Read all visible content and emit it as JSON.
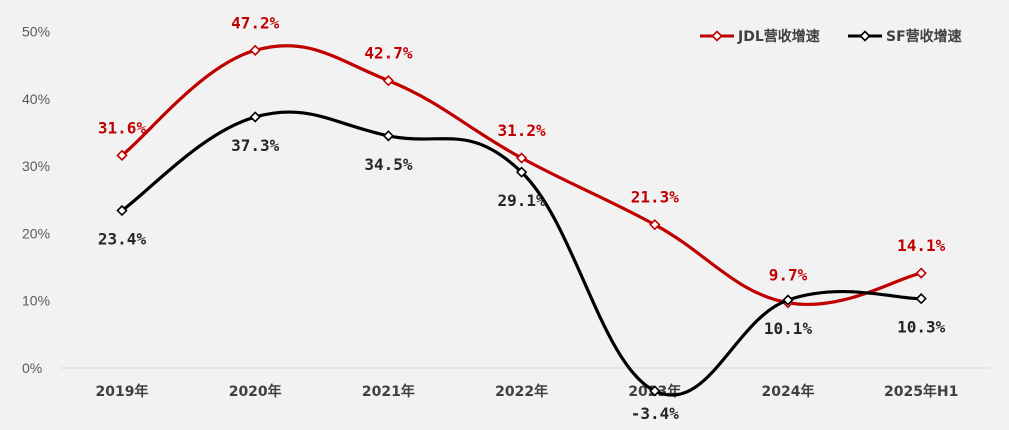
{
  "chart_data": {
    "type": "line",
    "categories": [
      "2019年",
      "2020年",
      "2021年",
      "2022年",
      "2023年",
      "2024年",
      "2025年H1"
    ],
    "ylim": [
      -5,
      50
    ],
    "yticks": [
      0,
      10,
      20,
      30,
      40,
      50
    ],
    "ytick_labels": [
      "0%",
      "10%",
      "20%",
      "30%",
      "40%",
      "50%"
    ],
    "series": [
      {
        "name": "JDL营收增速",
        "color": "#c00000",
        "values": [
          31.6,
          47.2,
          42.7,
          31.2,
          21.3,
          9.7,
          14.1
        ],
        "labels": [
          "31.6%",
          "47.2%",
          "42.7%",
          "31.2%",
          "21.3%",
          "9.7%",
          "14.1%"
        ]
      },
      {
        "name": "SF营收增速",
        "color": "#000000",
        "values": [
          23.4,
          37.3,
          34.5,
          29.1,
          -3.4,
          10.1,
          10.3
        ],
        "labels": [
          "23.4%",
          "37.3%",
          "34.5%",
          "29.1%",
          "-3.4%",
          "10.1%",
          "10.3%"
        ]
      }
    ],
    "legend_position": "top-right"
  }
}
